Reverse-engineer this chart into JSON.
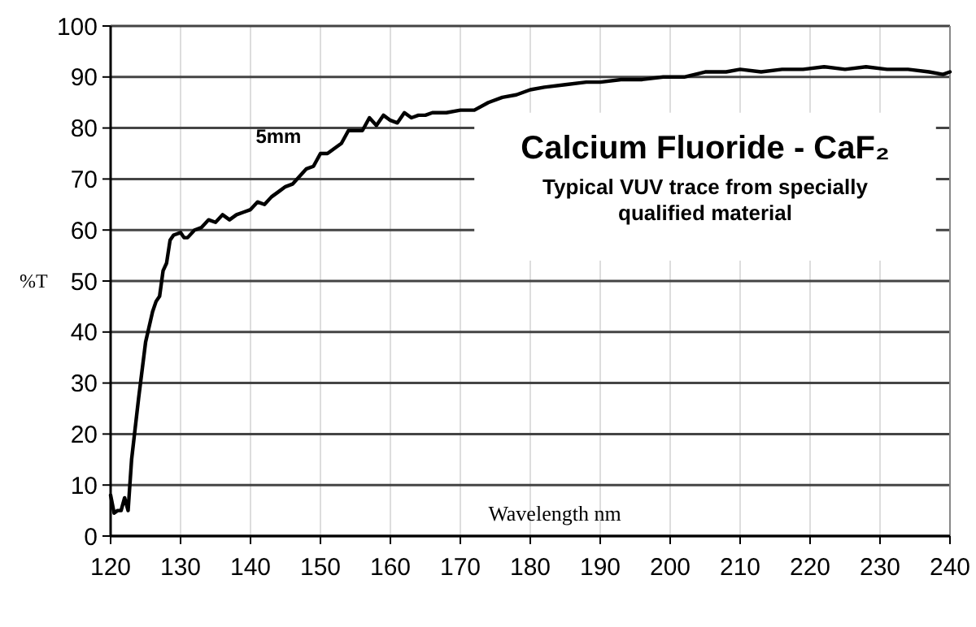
{
  "chart_data": {
    "type": "line",
    "title": "Calcium Fluoride - CaF₂",
    "subtitle": "Typical VUV trace from specially qualified material",
    "xlabel": "Wavelength nm",
    "ylabel": "%T",
    "annotations": [
      "5mm"
    ],
    "xlim": [
      120,
      240
    ],
    "xticks": [
      120,
      130,
      140,
      150,
      160,
      170,
      180,
      190,
      200,
      210,
      220,
      230,
      240
    ],
    "ylim": [
      0,
      100
    ],
    "yticks": [
      0,
      10,
      20,
      30,
      40,
      50,
      60,
      70,
      80,
      90,
      100
    ],
    "grid": true,
    "marker": "none",
    "line_style": "solid",
    "series": [
      {
        "color": "#000000",
        "x": [
          120,
          120.5,
          121,
          121.5,
          122,
          122.5,
          123,
          124,
          125,
          126,
          126.5,
          127,
          127.5,
          128,
          128.5,
          129,
          130,
          130.5,
          131,
          132,
          133,
          134,
          135,
          136,
          137,
          138,
          139,
          140,
          141,
          142,
          143,
          144,
          145,
          146,
          147,
          148,
          149,
          150,
          151,
          152,
          153,
          154,
          155,
          156,
          157,
          158,
          159,
          160,
          161,
          162,
          163,
          164,
          165,
          166,
          167,
          168,
          170,
          172,
          174,
          176,
          178,
          180,
          182,
          185,
          188,
          190,
          193,
          196,
          199,
          202,
          205,
          208,
          210,
          213,
          216,
          219,
          222,
          225,
          228,
          231,
          234,
          237,
          239,
          240
        ],
        "values": [
          8,
          4.5,
          5,
          5,
          7.5,
          5,
          15,
          27,
          38,
          44,
          46,
          47,
          52,
          53.5,
          58,
          59,
          59.5,
          58.5,
          58.5,
          60,
          60.5,
          62,
          61.5,
          63,
          62,
          63,
          63.5,
          64,
          65.5,
          65,
          66.5,
          67.5,
          68.5,
          69,
          70.5,
          72,
          72.5,
          75,
          75,
          76,
          77,
          79.5,
          79.5,
          79.5,
          82,
          80.5,
          82.5,
          81.5,
          81,
          83,
          82,
          82.5,
          82.5,
          83,
          83,
          83,
          83.5,
          83.5,
          85,
          86,
          86.5,
          87.5,
          88,
          88.5,
          89,
          89,
          89.5,
          89.5,
          90,
          90,
          91,
          91,
          91.5,
          91,
          91.5,
          91.5,
          92,
          91.5,
          92,
          91.5,
          91.5,
          91,
          90.5,
          91
        ]
      }
    ]
  }
}
